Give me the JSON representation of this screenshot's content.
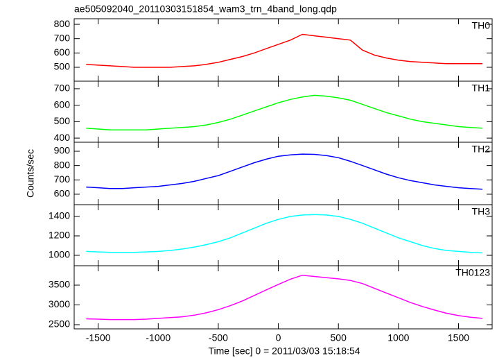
{
  "chart_data": [
    {
      "type": "line",
      "title": "ae505092040_20110303151854_wam3_trn_4band_long.qdp",
      "y_label": "Counts/sec",
      "x": [
        -1600,
        -1500,
        -1400,
        -1300,
        -1200,
        -1100,
        -1000,
        -900,
        -800,
        -700,
        -600,
        -500,
        -400,
        -300,
        -200,
        -100,
        0,
        100,
        200,
        300,
        400,
        500,
        600,
        700,
        800,
        900,
        1000,
        1100,
        1200,
        1300,
        1400,
        1500,
        1600,
        1700
      ],
      "series": [
        {
          "name": "TH0",
          "color": "#ff0000",
          "values": [
            520,
            515,
            510,
            505,
            500,
            500,
            500,
            500,
            505,
            510,
            520,
            535,
            555,
            575,
            600,
            630,
            660,
            690,
            730,
            720,
            710,
            700,
            690,
            620,
            585,
            565,
            550,
            540,
            535,
            530,
            525,
            525,
            525,
            525
          ]
        }
      ],
      "xlim": [
        -1700,
        1780
      ],
      "xticks": [
        -1500,
        -1000,
        -500,
        0,
        500,
        1000,
        1500
      ],
      "ylim": [
        403,
        839
      ],
      "yticks": [
        500,
        600,
        700,
        800
      ]
    },
    {
      "type": "line",
      "x": [
        -1600,
        -1500,
        -1400,
        -1300,
        -1200,
        -1100,
        -1000,
        -900,
        -800,
        -700,
        -600,
        -500,
        -400,
        -300,
        -200,
        -100,
        0,
        100,
        200,
        300,
        400,
        500,
        600,
        700,
        800,
        900,
        1000,
        1100,
        1200,
        1300,
        1400,
        1500,
        1600,
        1700
      ],
      "series": [
        {
          "name": "TH1",
          "color": "#00ff00",
          "values": [
            460,
            455,
            450,
            450,
            450,
            450,
            455,
            460,
            465,
            470,
            480,
            495,
            515,
            540,
            565,
            590,
            615,
            635,
            650,
            660,
            655,
            645,
            630,
            605,
            580,
            555,
            535,
            515,
            500,
            490,
            480,
            470,
            465,
            460
          ]
        }
      ],
      "xlim": [
        -1700,
        1780
      ],
      "xticks": [
        -1500,
        -1000,
        -500,
        0,
        500,
        1000,
        1500
      ],
      "ylim": [
        375,
        746
      ],
      "yticks": [
        400,
        500,
        600,
        700
      ]
    },
    {
      "type": "line",
      "x": [
        -1600,
        -1500,
        -1400,
        -1300,
        -1200,
        -1100,
        -1000,
        -900,
        -800,
        -700,
        -600,
        -500,
        -400,
        -300,
        -200,
        -100,
        0,
        100,
        200,
        300,
        400,
        500,
        600,
        700,
        800,
        900,
        1000,
        1100,
        1200,
        1300,
        1400,
        1500,
        1600,
        1700
      ],
      "series": [
        {
          "name": "TH2",
          "color": "#0000ff",
          "values": [
            650,
            645,
            640,
            640,
            645,
            650,
            655,
            665,
            675,
            690,
            710,
            730,
            760,
            790,
            820,
            845,
            865,
            875,
            880,
            878,
            870,
            855,
            830,
            800,
            770,
            740,
            715,
            695,
            680,
            665,
            655,
            645,
            640,
            635
          ]
        }
      ],
      "xlim": [
        -1700,
        1780
      ],
      "xticks": [
        -1500,
        -1000,
        -500,
        0,
        500,
        1000,
        1500
      ],
      "ylim": [
        527,
        963
      ],
      "yticks": [
        600,
        700,
        800,
        900
      ]
    },
    {
      "type": "line",
      "x": [
        -1600,
        -1500,
        -1400,
        -1300,
        -1200,
        -1100,
        -1000,
        -900,
        -800,
        -700,
        -600,
        -500,
        -400,
        -300,
        -200,
        -100,
        0,
        100,
        200,
        300,
        400,
        500,
        600,
        700,
        800,
        900,
        1000,
        1100,
        1200,
        1300,
        1400,
        1500,
        1600,
        1700
      ],
      "series": [
        {
          "name": "TH3",
          "color": "#00ffff",
          "values": [
            1040,
            1035,
            1030,
            1030,
            1030,
            1035,
            1040,
            1050,
            1065,
            1085,
            1110,
            1140,
            1180,
            1230,
            1280,
            1330,
            1370,
            1400,
            1415,
            1420,
            1415,
            1400,
            1370,
            1330,
            1280,
            1230,
            1180,
            1140,
            1100,
            1070,
            1050,
            1040,
            1030,
            1025
          ]
        }
      ],
      "xlim": [
        -1700,
        1780
      ],
      "xticks": [
        -1500,
        -1000,
        -500,
        0,
        500,
        1000,
        1500
      ],
      "ylim": [
        893,
        1521
      ],
      "yticks": [
        1000,
        1200,
        1400
      ]
    },
    {
      "type": "line",
      "x_label": "Time [sec] 0 = 2011/03/03 15:18:54",
      "x": [
        -1600,
        -1500,
        -1400,
        -1300,
        -1200,
        -1100,
        -1000,
        -900,
        -800,
        -700,
        -600,
        -500,
        -400,
        -300,
        -200,
        -100,
        0,
        100,
        200,
        300,
        400,
        500,
        600,
        700,
        800,
        900,
        1000,
        1100,
        1200,
        1300,
        1400,
        1500,
        1600,
        1700
      ],
      "series": [
        {
          "name": "TH0123",
          "color": "#ff00ff",
          "values": [
            2650,
            2640,
            2630,
            2630,
            2630,
            2640,
            2660,
            2680,
            2700,
            2740,
            2800,
            2880,
            2980,
            3100,
            3240,
            3380,
            3520,
            3650,
            3750,
            3720,
            3690,
            3660,
            3620,
            3540,
            3420,
            3300,
            3180,
            3060,
            2960,
            2870,
            2790,
            2730,
            2690,
            2660
          ]
        }
      ],
      "xlim": [
        -1700,
        1780
      ],
      "xticks": [
        -1500,
        -1000,
        -500,
        0,
        500,
        1000,
        1500
      ],
      "ylim": [
        2395,
        3991
      ],
      "yticks": [
        2500,
        3000,
        3500
      ]
    }
  ]
}
